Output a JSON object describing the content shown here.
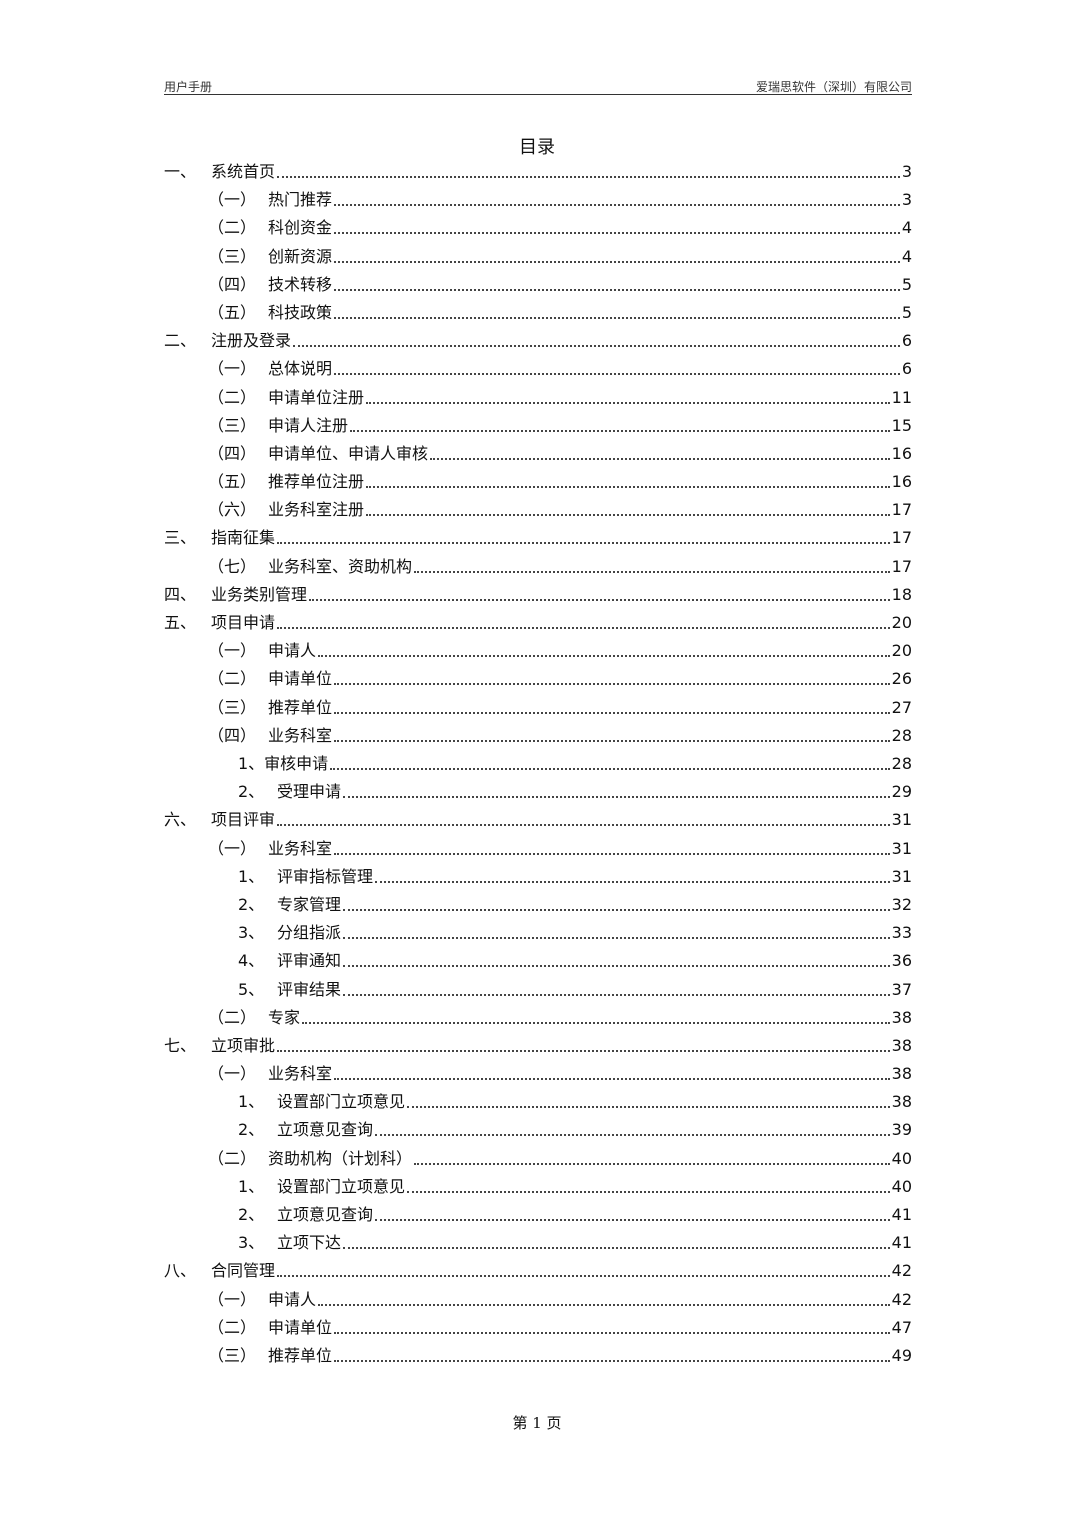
{
  "header": {
    "left": "用户手册",
    "right": "爱瑞思软件（深圳）有限公司"
  },
  "title": "目录",
  "toc": [
    {
      "level": 1,
      "num": "一、",
      "title": "系统首页",
      "page": "3"
    },
    {
      "level": 2,
      "num": "（一）",
      "title": "热门推荐",
      "page": "3"
    },
    {
      "level": 2,
      "num": "（二）",
      "title": "科创资金",
      "page": "4"
    },
    {
      "level": 2,
      "num": "（三）",
      "title": "创新资源",
      "page": "4"
    },
    {
      "level": 2,
      "num": "（四）",
      "title": "技术转移",
      "page": "5"
    },
    {
      "level": 2,
      "num": "（五）",
      "title": "科技政策",
      "page": "5"
    },
    {
      "level": 1,
      "num": "二、",
      "title": "注册及登录",
      "page": "6"
    },
    {
      "level": 2,
      "num": "（一）",
      "title": "总体说明",
      "page": "6"
    },
    {
      "level": 2,
      "num": "（二）",
      "title": "申请单位注册",
      "page": "11"
    },
    {
      "level": 2,
      "num": "（三）",
      "title": "申请人注册",
      "page": "15"
    },
    {
      "level": 2,
      "num": "（四）",
      "title": "申请单位、申请人审核",
      "page": "16"
    },
    {
      "level": 2,
      "num": "（五）",
      "title": "推荐单位注册",
      "page": "16"
    },
    {
      "level": 2,
      "num": "（六）",
      "title": "业务科室注册",
      "page": "17"
    },
    {
      "level": 1,
      "num": "三、",
      "title": "指南征集",
      "page": "17"
    },
    {
      "level": 2,
      "num": "（七）",
      "title": "业务科室、资助机构",
      "page": "17"
    },
    {
      "level": 1,
      "num": "四、",
      "title": "业务类别管理",
      "page": "18"
    },
    {
      "level": 1,
      "num": "五、",
      "title": "项目申请",
      "page": "20"
    },
    {
      "level": 2,
      "num": "（一）",
      "title": "申请人",
      "page": "20"
    },
    {
      "level": 2,
      "num": "（二）",
      "title": "申请单位",
      "page": "26"
    },
    {
      "level": 2,
      "num": "（三）",
      "title": "推荐单位",
      "page": "27"
    },
    {
      "level": 2,
      "num": "（四）",
      "title": "业务科室",
      "page": "28"
    },
    {
      "level": 4,
      "num": "",
      "title": "1、审核申请",
      "page": "28"
    },
    {
      "level": 3,
      "num": "2、",
      "title": "受理申请",
      "page": "29"
    },
    {
      "level": 1,
      "num": "六、",
      "title": "项目评审",
      "page": "31"
    },
    {
      "level": 2,
      "num": "（一）",
      "title": "业务科室",
      "page": "31"
    },
    {
      "level": 3,
      "num": "1、",
      "title": "评审指标管理",
      "page": "31"
    },
    {
      "level": 3,
      "num": "2、",
      "title": "专家管理",
      "page": "32"
    },
    {
      "level": 3,
      "num": "3、",
      "title": "分组指派",
      "page": "33"
    },
    {
      "level": 3,
      "num": "4、",
      "title": "评审通知",
      "page": "36"
    },
    {
      "level": 3,
      "num": "5、",
      "title": "评审结果",
      "page": "37"
    },
    {
      "level": 2,
      "num": "（二）",
      "title": "专家",
      "page": "38"
    },
    {
      "level": 1,
      "num": "七、",
      "title": "立项审批",
      "page": "38"
    },
    {
      "level": 2,
      "num": "（一）",
      "title": "业务科室",
      "page": "38"
    },
    {
      "level": 3,
      "num": "1、",
      "title": "设置部门立项意见",
      "page": "38"
    },
    {
      "level": 3,
      "num": "2、",
      "title": "立项意见查询",
      "page": "39"
    },
    {
      "level": 2,
      "num": "（二）",
      "title": "资助机构（计划科）",
      "page": "40"
    },
    {
      "level": 3,
      "num": "1、",
      "title": "设置部门立项意见",
      "page": "40"
    },
    {
      "level": 3,
      "num": "2、",
      "title": "立项意见查询",
      "page": "41"
    },
    {
      "level": 3,
      "num": "3、",
      "title": "立项下达",
      "page": "41"
    },
    {
      "level": 1,
      "num": "八、",
      "title": "合同管理",
      "page": "42"
    },
    {
      "level": 2,
      "num": "（一）",
      "title": "申请人",
      "page": "42"
    },
    {
      "level": 2,
      "num": "（二）",
      "title": "申请单位",
      "page": "47"
    },
    {
      "level": 2,
      "num": "（三）",
      "title": "推荐单位",
      "page": "49"
    }
  ],
  "footer": "第 1 页"
}
